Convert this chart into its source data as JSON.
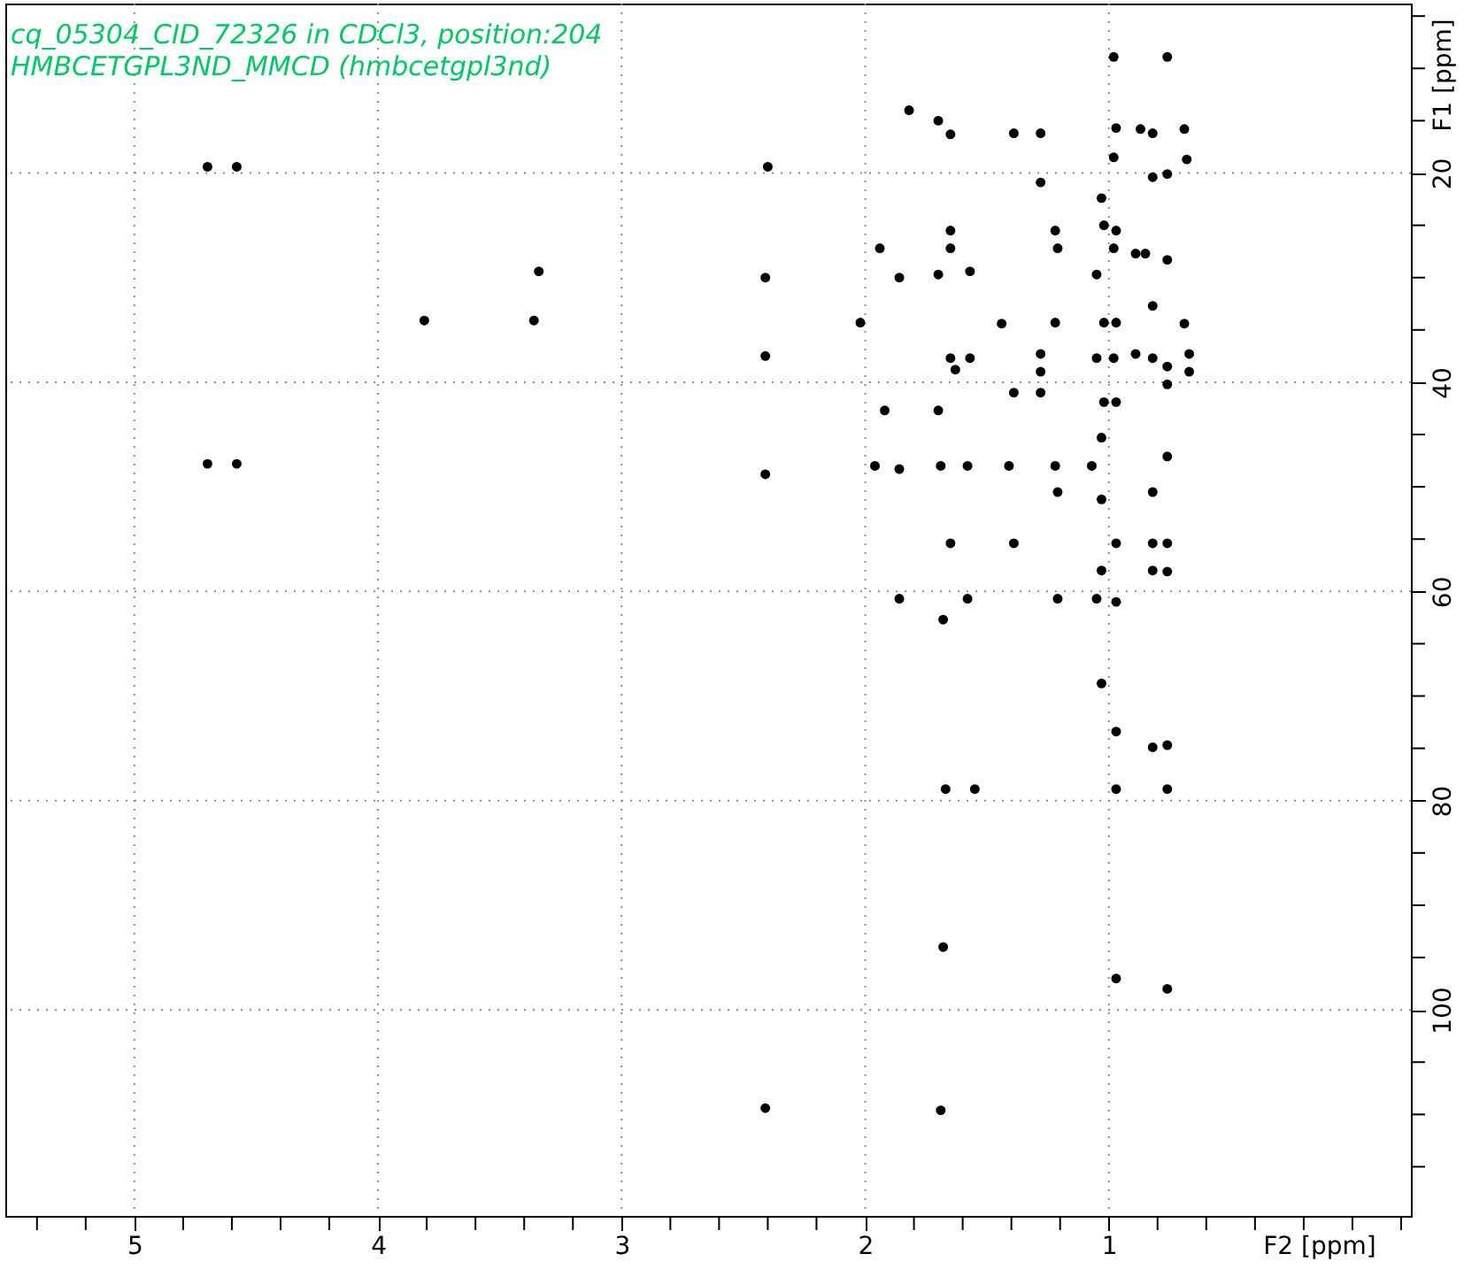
{
  "chart_data": {
    "type": "scatter",
    "title": "cq_05304_CID_72326 in CDCl3, position:204",
    "subtitle": "HMBCETGPL3ND_MMCD (hmbcetgpl3nd)",
    "xlabel": "F2 [ppm]",
    "ylabel": "F1 [ppm]",
    "color": "#000000",
    "marker": "circle",
    "grid": true,
    "xlim": [
      5.53,
      -0.24
    ],
    "ylim": [
      119.7,
      3.8
    ],
    "xticks": [
      {
        "value": 5.4,
        "label": null
      },
      {
        "value": 5.2,
        "label": null
      },
      5,
      {
        "value": 4.8,
        "label": null
      },
      {
        "value": 4.6,
        "label": null
      },
      {
        "value": 4.4,
        "label": null
      },
      {
        "value": 4.2,
        "label": null
      },
      4,
      {
        "value": 3.8,
        "label": null
      },
      {
        "value": 3.6,
        "label": null
      },
      {
        "value": 3.4,
        "label": null
      },
      {
        "value": 3.2,
        "label": null
      },
      3,
      {
        "value": 2.8,
        "label": null
      },
      {
        "value": 2.6,
        "label": null
      },
      {
        "value": 2.4,
        "label": null
      },
      {
        "value": 2.2,
        "label": null
      },
      2,
      {
        "value": 1.8,
        "label": null
      },
      {
        "value": 1.6,
        "label": null
      },
      {
        "value": 1.4,
        "label": null
      },
      {
        "value": 1.2,
        "label": null
      },
      1,
      {
        "value": 0.8,
        "label": null
      },
      {
        "value": 0.6,
        "label": null
      },
      {
        "value": 0.4,
        "label": null
      },
      {
        "value": 0.2,
        "label": null
      },
      {
        "value": 0,
        "label": null
      },
      {
        "value": -0.2,
        "label": null
      }
    ],
    "yticks": [
      {
        "value": 5,
        "label": null
      },
      {
        "value": 10,
        "label": null
      },
      {
        "value": 15,
        "label": null
      },
      20,
      {
        "value": 25,
        "label": null
      },
      {
        "value": 30,
        "label": null
      },
      {
        "value": 35,
        "label": null
      },
      40,
      {
        "value": 45,
        "label": null
      },
      {
        "value": 50,
        "label": null
      },
      {
        "value": 55,
        "label": null
      },
      60,
      {
        "value": 65,
        "label": null
      },
      {
        "value": 70,
        "label": null
      },
      {
        "value": 75,
        "label": null
      },
      80,
      {
        "value": 85,
        "label": null
      },
      {
        "value": 90,
        "label": null
      },
      {
        "value": 95,
        "label": null
      },
      100,
      {
        "value": 105,
        "label": null
      },
      {
        "value": 110,
        "label": null
      },
      {
        "value": 115,
        "label": null
      }
    ],
    "x": [
      0.98,
      0.76,
      1.82,
      1.7,
      1.65,
      1.39,
      1.28,
      0.97,
      0.87,
      0.82,
      0.82,
      0.69,
      0.68,
      0.98,
      0.76,
      1.28,
      1.03,
      4.7,
      4.58,
      2.4,
      3.34,
      2.41,
      3.81,
      3.36,
      2.41,
      4.7,
      4.58,
      2.41,
      2.41,
      1.69,
      1.68,
      1.67,
      1.55,
      0.97,
      0.76,
      0.97,
      0.76,
      0.82,
      1.03,
      0.97,
      0.76,
      1.65,
      1.22,
      1.02,
      0.97,
      1.94,
      1.65,
      1.21,
      0.98,
      0.89,
      0.85,
      0.76,
      1.86,
      1.7,
      1.57,
      1.05,
      2.02,
      1.44,
      1.22,
      1.02,
      0.97,
      0.82,
      0.69,
      1.65,
      1.57,
      1.28,
      1.05,
      0.98,
      0.89,
      0.82,
      0.76,
      0.67,
      0.67,
      1.63,
      1.28,
      1.39,
      1.28,
      1.02,
      0.97,
      1.92,
      1.7,
      0.76,
      1.96,
      1.86,
      1.69,
      1.58,
      1.41,
      1.22,
      1.07,
      1.03,
      0.76,
      1.03,
      1.21,
      0.82,
      1.65,
      1.39,
      0.97,
      0.82,
      0.76,
      1.03,
      0.82,
      0.76,
      1.86,
      1.58,
      1.21,
      1.05,
      0.97,
      1.68
    ],
    "values": [
      8.9,
      8.9,
      14.0,
      15.0,
      16.3,
      16.2,
      16.2,
      15.7,
      15.8,
      16.2,
      20.4,
      15.8,
      18.7,
      18.5,
      20.1,
      20.9,
      22.4,
      19.4,
      19.4,
      19.4,
      29.4,
      30.0,
      34.1,
      34.1,
      37.5,
      47.8,
      47.8,
      48.8,
      109.4,
      109.6,
      94.0,
      78.9,
      78.9,
      78.9,
      78.9,
      73.4,
      74.7,
      74.9,
      68.8,
      97.0,
      98.0,
      25.5,
      25.5,
      25.0,
      25.5,
      27.2,
      27.2,
      27.2,
      27.2,
      27.7,
      27.7,
      28.3,
      30.0,
      29.7,
      29.4,
      29.7,
      34.3,
      34.4,
      34.3,
      34.3,
      34.3,
      32.7,
      34.4,
      37.7,
      37.7,
      37.3,
      37.7,
      37.7,
      37.3,
      37.7,
      38.5,
      37.3,
      39.0,
      38.8,
      39.0,
      41.0,
      41.0,
      41.9,
      41.9,
      42.7,
      42.7,
      40.2,
      48.0,
      48.3,
      48.0,
      48.0,
      48.0,
      48.0,
      48.0,
      45.3,
      47.1,
      51.2,
      50.5,
      50.5,
      55.4,
      55.4,
      55.4,
      55.4,
      55.4,
      58.0,
      58.0,
      58.1,
      60.7,
      60.7,
      60.7,
      60.7,
      61.0,
      62.7
    ]
  }
}
